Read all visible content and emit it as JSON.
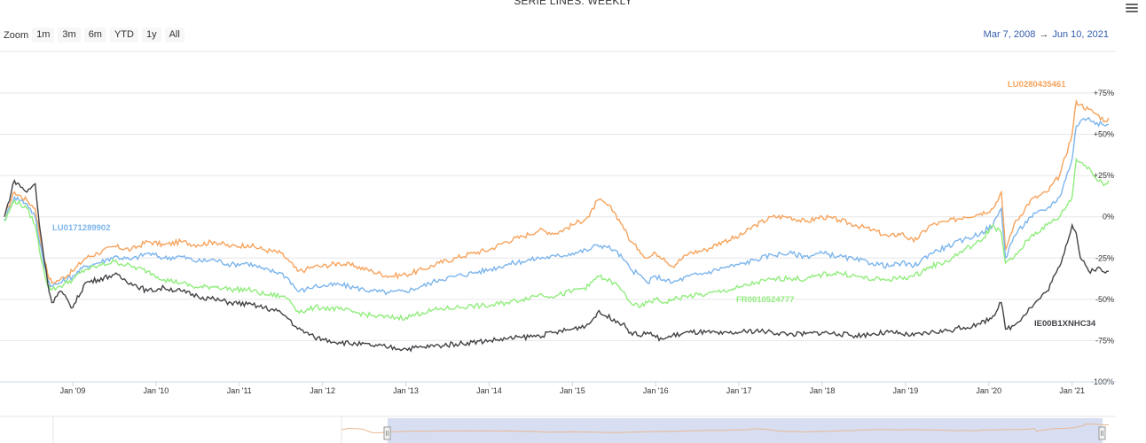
{
  "title": "SERIE LINES: WEEKLY",
  "toolbar": {
    "zoom_label": "Zoom",
    "zoom_buttons": [
      "1m",
      "3m",
      "6m",
      "YTD",
      "1y",
      "All"
    ],
    "range_from": "Mar 7, 2008",
    "range_arrow": "→",
    "range_to": "Jun 10, 2021"
  },
  "icons": {
    "menu": "hamburger-menu-icon"
  },
  "chart_data": {
    "type": "line",
    "title": "SERIE LINES: WEEKLY",
    "x_tick_labels": [
      "Jan '09",
      "Jan '10",
      "Jan '11",
      "Jan '12",
      "Jan '13",
      "Jan '14",
      "Jan '15",
      "Jan '16",
      "Jan '17",
      "Jan '18",
      "Jan '19",
      "Jan '20",
      "Jan '21"
    ],
    "y_tick_labels": [
      "+75%",
      "+50%",
      "+25%",
      "0%",
      "-25%",
      "-50%",
      "-75%",
      "-100%"
    ],
    "y_ticks": [
      75,
      50,
      25,
      0,
      -25,
      -50,
      -75,
      -100
    ],
    "xlim": [
      2008.18,
      2021.44
    ],
    "ylim": [
      -100,
      75
    ],
    "grid": true,
    "series": [
      {
        "name": "LU0280435461",
        "color": "#f7a35c",
        "x": [
          2008.18,
          2008.3,
          2008.45,
          2008.55,
          2008.6,
          2008.7,
          2008.75,
          2008.85,
          2009.0,
          2009.15,
          2009.3,
          2009.5,
          2009.7,
          2009.9,
          2010.1,
          2010.3,
          2010.5,
          2010.7,
          2010.9,
          2011.1,
          2011.3,
          2011.5,
          2011.6,
          2011.7,
          2011.8,
          2011.9,
          2012.0,
          2012.2,
          2012.4,
          2012.6,
          2012.8,
          2013.0,
          2013.2,
          2013.4,
          2013.6,
          2013.8,
          2014.0,
          2014.2,
          2014.4,
          2014.6,
          2014.8,
          2015.0,
          2015.2,
          2015.3,
          2015.4,
          2015.5,
          2015.6,
          2015.7,
          2015.8,
          2015.9,
          2016.0,
          2016.1,
          2016.2,
          2016.4,
          2016.6,
          2016.8,
          2017.0,
          2017.2,
          2017.4,
          2017.6,
          2017.8,
          2018.0,
          2018.2,
          2018.4,
          2018.6,
          2018.8,
          2018.95,
          2019.1,
          2019.3,
          2019.5,
          2019.7,
          2019.9,
          2020.05,
          2020.15,
          2020.2,
          2020.3,
          2020.5,
          2020.7,
          2020.85,
          2021.0,
          2021.05,
          2021.1,
          2021.2,
          2021.3,
          2021.4,
          2021.44
        ],
        "y": [
          0,
          15,
          10,
          5,
          -10,
          -35,
          -40,
          -38,
          -33,
          -25,
          -22,
          -18,
          -20,
          -15,
          -17,
          -15,
          -17,
          -15,
          -18,
          -17,
          -20,
          -22,
          -27,
          -33,
          -32,
          -30,
          -30,
          -28,
          -30,
          -33,
          -36,
          -35,
          -32,
          -28,
          -25,
          -22,
          -20,
          -15,
          -12,
          -8,
          -10,
          -5,
          0,
          10,
          8,
          3,
          -5,
          -15,
          -20,
          -25,
          -22,
          -25,
          -30,
          -22,
          -20,
          -15,
          -12,
          -5,
          0,
          0,
          -3,
          0,
          -2,
          -5,
          -8,
          -12,
          -10,
          -15,
          -5,
          -3,
          0,
          2,
          5,
          15,
          -20,
          -5,
          10,
          15,
          25,
          50,
          70,
          68,
          65,
          62,
          58,
          60
        ]
      },
      {
        "name": "LU0171289902",
        "color": "#7cb5ec",
        "x": [
          2008.18,
          2008.3,
          2008.45,
          2008.55,
          2008.6,
          2008.7,
          2008.75,
          2008.85,
          2009.0,
          2009.15,
          2009.3,
          2009.5,
          2009.7,
          2009.9,
          2010.1,
          2010.3,
          2010.5,
          2010.7,
          2010.9,
          2011.1,
          2011.3,
          2011.5,
          2011.6,
          2011.7,
          2011.8,
          2011.9,
          2012.0,
          2012.2,
          2012.4,
          2012.6,
          2012.8,
          2013.0,
          2013.2,
          2013.4,
          2013.6,
          2013.8,
          2014.0,
          2014.2,
          2014.4,
          2014.6,
          2014.8,
          2015.0,
          2015.2,
          2015.3,
          2015.4,
          2015.5,
          2015.6,
          2015.7,
          2015.8,
          2015.9,
          2016.0,
          2016.1,
          2016.2,
          2016.4,
          2016.6,
          2016.8,
          2017.0,
          2017.2,
          2017.4,
          2017.6,
          2017.8,
          2018.0,
          2018.2,
          2018.4,
          2018.6,
          2018.8,
          2018.95,
          2019.1,
          2019.3,
          2019.5,
          2019.7,
          2019.9,
          2020.05,
          2020.15,
          2020.2,
          2020.3,
          2020.5,
          2020.7,
          2020.85,
          2021.0,
          2021.05,
          2021.1,
          2021.2,
          2021.3,
          2021.4,
          2021.44
        ],
        "y": [
          -2,
          12,
          8,
          0,
          -15,
          -38,
          -42,
          -40,
          -36,
          -30,
          -28,
          -24,
          -26,
          -22,
          -25,
          -24,
          -27,
          -26,
          -29,
          -28,
          -32,
          -34,
          -38,
          -45,
          -44,
          -42,
          -42,
          -41,
          -43,
          -45,
          -46,
          -45,
          -42,
          -38,
          -36,
          -34,
          -32,
          -29,
          -27,
          -25,
          -24,
          -22,
          -20,
          -17,
          -18,
          -20,
          -25,
          -32,
          -35,
          -40,
          -36,
          -38,
          -40,
          -36,
          -34,
          -31,
          -29,
          -26,
          -23,
          -22,
          -24,
          -22,
          -24,
          -26,
          -28,
          -30,
          -28,
          -30,
          -22,
          -18,
          -14,
          -10,
          -5,
          5,
          -25,
          -12,
          0,
          5,
          12,
          35,
          55,
          58,
          60,
          57,
          55,
          56
        ]
      },
      {
        "name": "FR0010524777",
        "color": "#90ed7d",
        "x": [
          2008.18,
          2008.3,
          2008.45,
          2008.55,
          2008.6,
          2008.7,
          2008.75,
          2008.85,
          2009.0,
          2009.15,
          2009.3,
          2009.5,
          2009.7,
          2009.9,
          2010.1,
          2010.3,
          2010.5,
          2010.7,
          2010.9,
          2011.1,
          2011.3,
          2011.5,
          2011.6,
          2011.7,
          2011.8,
          2011.9,
          2012.0,
          2012.2,
          2012.4,
          2012.6,
          2012.8,
          2013.0,
          2013.2,
          2013.4,
          2013.6,
          2013.8,
          2014.0,
          2014.2,
          2014.4,
          2014.6,
          2014.8,
          2015.0,
          2015.2,
          2015.3,
          2015.4,
          2015.5,
          2015.6,
          2015.7,
          2015.8,
          2015.9,
          2016.0,
          2016.1,
          2016.2,
          2016.4,
          2016.6,
          2016.8,
          2017.0,
          2017.2,
          2017.4,
          2017.6,
          2017.8,
          2018.0,
          2018.2,
          2018.4,
          2018.6,
          2018.8,
          2018.95,
          2019.1,
          2019.3,
          2019.5,
          2019.7,
          2019.9,
          2020.05,
          2020.15,
          2020.2,
          2020.3,
          2020.5,
          2020.7,
          2020.85,
          2021.0,
          2021.05,
          2021.1,
          2021.2,
          2021.3,
          2021.4,
          2021.44
        ],
        "y": [
          -3,
          10,
          5,
          -5,
          -20,
          -42,
          -44,
          -42,
          -38,
          -32,
          -30,
          -27,
          -30,
          -33,
          -38,
          -40,
          -43,
          -42,
          -44,
          -44,
          -47,
          -48,
          -50,
          -57,
          -57,
          -55,
          -55,
          -56,
          -58,
          -60,
          -61,
          -61,
          -58,
          -56,
          -55,
          -54,
          -54,
          -52,
          -50,
          -47,
          -48,
          -45,
          -42,
          -36,
          -38,
          -40,
          -45,
          -52,
          -55,
          -52,
          -50,
          -52,
          -50,
          -48,
          -47,
          -45,
          -43,
          -40,
          -38,
          -37,
          -38,
          -35,
          -34,
          -36,
          -38,
          -38,
          -37,
          -36,
          -30,
          -27,
          -20,
          -15,
          -5,
          -10,
          -28,
          -25,
          -12,
          -5,
          0,
          12,
          35,
          33,
          30,
          22,
          20,
          22
        ]
      },
      {
        "name": "IE00B1XNHC34",
        "color": "#434348",
        "x": [
          2008.18,
          2008.3,
          2008.45,
          2008.55,
          2008.6,
          2008.7,
          2008.75,
          2008.85,
          2009.0,
          2009.15,
          2009.3,
          2009.5,
          2009.7,
          2009.9,
          2010.1,
          2010.3,
          2010.5,
          2010.7,
          2010.9,
          2011.1,
          2011.3,
          2011.5,
          2011.6,
          2011.7,
          2011.8,
          2011.9,
          2012.0,
          2012.2,
          2012.4,
          2012.6,
          2012.8,
          2013.0,
          2013.2,
          2013.4,
          2013.6,
          2013.8,
          2014.0,
          2014.2,
          2014.4,
          2014.6,
          2014.8,
          2015.0,
          2015.2,
          2015.3,
          2015.4,
          2015.5,
          2015.6,
          2015.7,
          2015.8,
          2015.9,
          2016.0,
          2016.1,
          2016.2,
          2016.4,
          2016.6,
          2016.8,
          2017.0,
          2017.2,
          2017.4,
          2017.6,
          2017.8,
          2018.0,
          2018.2,
          2018.4,
          2018.6,
          2018.8,
          2018.95,
          2019.1,
          2019.3,
          2019.5,
          2019.7,
          2019.9,
          2020.05,
          2020.15,
          2020.2,
          2020.3,
          2020.5,
          2020.7,
          2020.85,
          2021.0,
          2021.05,
          2021.1,
          2021.2,
          2021.3,
          2021.4,
          2021.44
        ],
        "y": [
          0,
          22,
          15,
          20,
          -5,
          -40,
          -52,
          -45,
          -55,
          -40,
          -38,
          -35,
          -40,
          -45,
          -43,
          -45,
          -48,
          -50,
          -52,
          -53,
          -55,
          -58,
          -62,
          -68,
          -70,
          -73,
          -74,
          -76,
          -77,
          -78,
          -79,
          -80,
          -79,
          -78,
          -77,
          -76,
          -75,
          -74,
          -73,
          -72,
          -70,
          -68,
          -65,
          -58,
          -60,
          -62,
          -65,
          -70,
          -72,
          -70,
          -73,
          -74,
          -72,
          -70,
          -70,
          -71,
          -70,
          -69,
          -70,
          -71,
          -71,
          -70,
          -71,
          -72,
          -71,
          -70,
          -71,
          -72,
          -70,
          -69,
          -67,
          -65,
          -60,
          -52,
          -68,
          -66,
          -55,
          -45,
          -30,
          -5,
          -10,
          -25,
          -33,
          -31,
          -34,
          -33
        ]
      }
    ]
  }
}
